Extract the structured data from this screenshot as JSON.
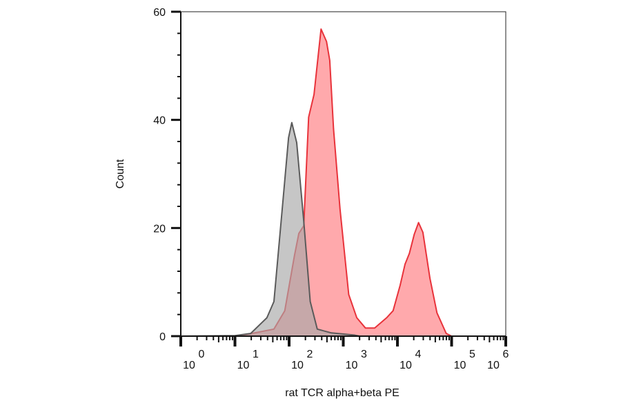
{
  "chart_data": {
    "type": "area",
    "title": "",
    "xlabel": "rat TCR alpha+beta PE",
    "ylabel": "Count",
    "x_scale": "log",
    "xlim_decades": [
      0,
      6
    ],
    "x_tick_labels": [
      {
        "base": "10",
        "exp": "0"
      },
      {
        "base": "10",
        "exp": "1"
      },
      {
        "base": "10",
        "exp": "2"
      },
      {
        "base": "10",
        "exp": "3"
      },
      {
        "base": "10",
        "exp": "4"
      },
      {
        "base": "10",
        "exp": "5"
      },
      {
        "base": "10",
        "exp": "6"
      }
    ],
    "ylim": [
      0,
      60
    ],
    "y_ticks": [
      0,
      20,
      40,
      60
    ],
    "y_tick_labels": [
      "0",
      "20",
      "40",
      "60"
    ],
    "grid": false,
    "series": [
      {
        "color": "#e8323a",
        "fill": "#ff9a9e",
        "points_log10x_count": [
          [
            0,
            0
          ],
          [
            1.0,
            0
          ],
          [
            1.21,
            0.3
          ],
          [
            1.72,
            1.3
          ],
          [
            1.92,
            4.7
          ],
          [
            2.1,
            15
          ],
          [
            2.18,
            19
          ],
          [
            2.27,
            20.4
          ],
          [
            2.36,
            40.5
          ],
          [
            2.46,
            44.7
          ],
          [
            2.52,
            50.3
          ],
          [
            2.59,
            56.8
          ],
          [
            2.69,
            54.5
          ],
          [
            2.75,
            51
          ],
          [
            2.82,
            38.3
          ],
          [
            2.94,
            23.5
          ],
          [
            3.1,
            7.7
          ],
          [
            3.25,
            3.4
          ],
          [
            3.41,
            1.5
          ],
          [
            3.58,
            1.5
          ],
          [
            3.8,
            3.4
          ],
          [
            3.92,
            4.7
          ],
          [
            4.05,
            9.4
          ],
          [
            4.14,
            13.3
          ],
          [
            4.22,
            15.3
          ],
          [
            4.31,
            18.8
          ],
          [
            4.39,
            21
          ],
          [
            4.47,
            19.2
          ],
          [
            4.6,
            10.7
          ],
          [
            4.73,
            4.3
          ],
          [
            4.9,
            0.5
          ],
          [
            5.0,
            0
          ],
          [
            6,
            0
          ]
        ]
      },
      {
        "color": "#5a5a5a",
        "fill": "#a8a8a8",
        "points_log10x_count": [
          [
            0,
            0
          ],
          [
            1.0,
            0.1
          ],
          [
            1.29,
            0.5
          ],
          [
            1.59,
            3.4
          ],
          [
            1.72,
            6.4
          ],
          [
            1.89,
            25.5
          ],
          [
            1.99,
            36.7
          ],
          [
            2.05,
            39.5
          ],
          [
            2.14,
            35.8
          ],
          [
            2.27,
            21.3
          ],
          [
            2.39,
            6.4
          ],
          [
            2.52,
            1.3
          ],
          [
            2.78,
            0.6
          ],
          [
            3.2,
            0.2
          ],
          [
            3.3,
            0
          ],
          [
            6,
            0
          ]
        ]
      }
    ]
  }
}
